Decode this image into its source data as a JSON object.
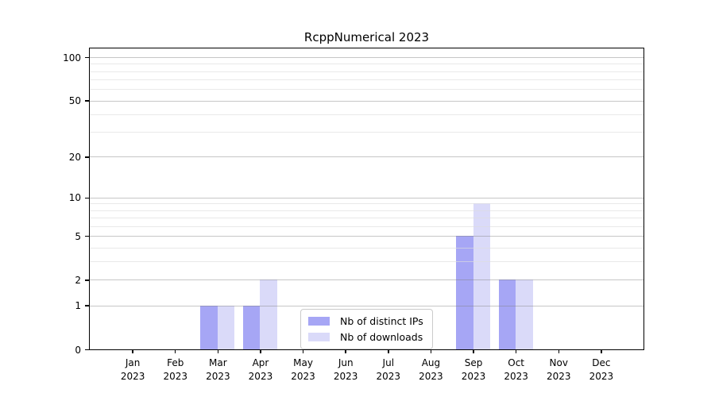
{
  "title": "RcppNumerical 2023",
  "chart_data": {
    "type": "bar",
    "title": "RcppNumerical 2023",
    "categories": [
      "Jan 2023",
      "Feb 2023",
      "Mar 2023",
      "Apr 2023",
      "May 2023",
      "Jun 2023",
      "Jul 2023",
      "Aug 2023",
      "Sep 2023",
      "Oct 2023",
      "Nov 2023",
      "Dec 2023"
    ],
    "series": [
      {
        "name": "Nb of distinct IPs",
        "color": "#a6a6f5",
        "values": [
          0,
          0,
          1,
          1,
          0,
          0,
          0,
          0,
          5,
          2,
          0,
          0
        ]
      },
      {
        "name": "Nb of downloads",
        "color": "#dadaf9",
        "values": [
          0,
          0,
          1,
          2,
          0,
          0,
          0,
          0,
          9,
          2,
          0,
          0
        ]
      }
    ],
    "xlabel": "",
    "ylabel": "",
    "yscale": "log1p",
    "ylim": [
      0,
      115
    ],
    "yticks": [
      0,
      1,
      2,
      5,
      10,
      20,
      50,
      100
    ],
    "minor_yticks": [
      3,
      4,
      6,
      7,
      8,
      9,
      30,
      40,
      60,
      70,
      80,
      90
    ],
    "grid": "horizontal",
    "legend_position": "inside-bottom-center",
    "bar_width_fraction": 0.4,
    "axis_color": "#000000",
    "major_grid_color": "#bcbcbc",
    "minor_grid_color": "#e9e9e9"
  },
  "legend": {
    "items": [
      {
        "label": "Nb of distinct IPs",
        "color": "#a6a6f5"
      },
      {
        "label": "Nb of downloads",
        "color": "#dadaf9"
      }
    ]
  }
}
